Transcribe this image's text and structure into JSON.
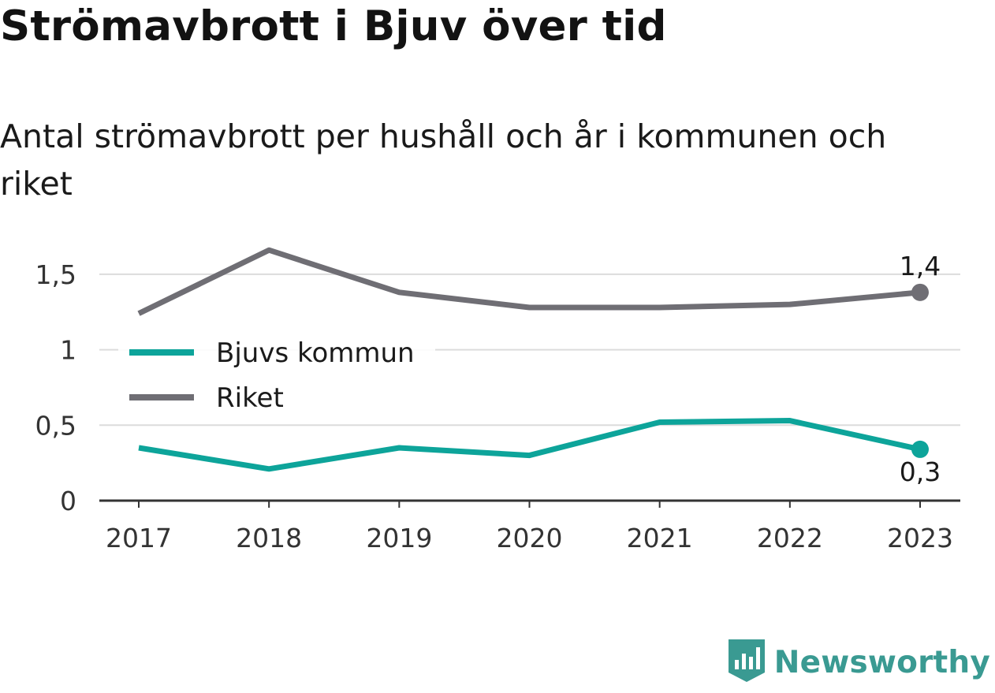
{
  "title": "Strömavbrott i Bjuv över tid",
  "subtitle": "Antal strömavbrott per hushåll och år i kommunen och riket",
  "brand": {
    "name": "Newsworthy",
    "logo_icon": "bar-chart-shield-icon",
    "color": "#3a9a92"
  },
  "chart_data": {
    "type": "line",
    "x": [
      "2017",
      "2018",
      "2019",
      "2020",
      "2021",
      "2022",
      "2023"
    ],
    "ylim": [
      0,
      1.75
    ],
    "yticks": [
      0,
      0.5,
      1,
      1.5
    ],
    "ytick_labels": [
      "0",
      "0,5",
      "1",
      "1,5"
    ],
    "grid": true,
    "legend_position": "left",
    "series": [
      {
        "name": "Bjuvs kommun",
        "color": "#0da49a",
        "values": [
          0.35,
          0.21,
          0.35,
          0.3,
          0.52,
          0.53,
          0.34
        ],
        "end_label": "0,3",
        "end_label_position": "below"
      },
      {
        "name": "Riket",
        "color": "#6f6e74",
        "values": [
          1.24,
          1.66,
          1.38,
          1.28,
          1.28,
          1.3,
          1.38
        ],
        "end_label": "1,4",
        "end_label_position": "above"
      }
    ]
  }
}
